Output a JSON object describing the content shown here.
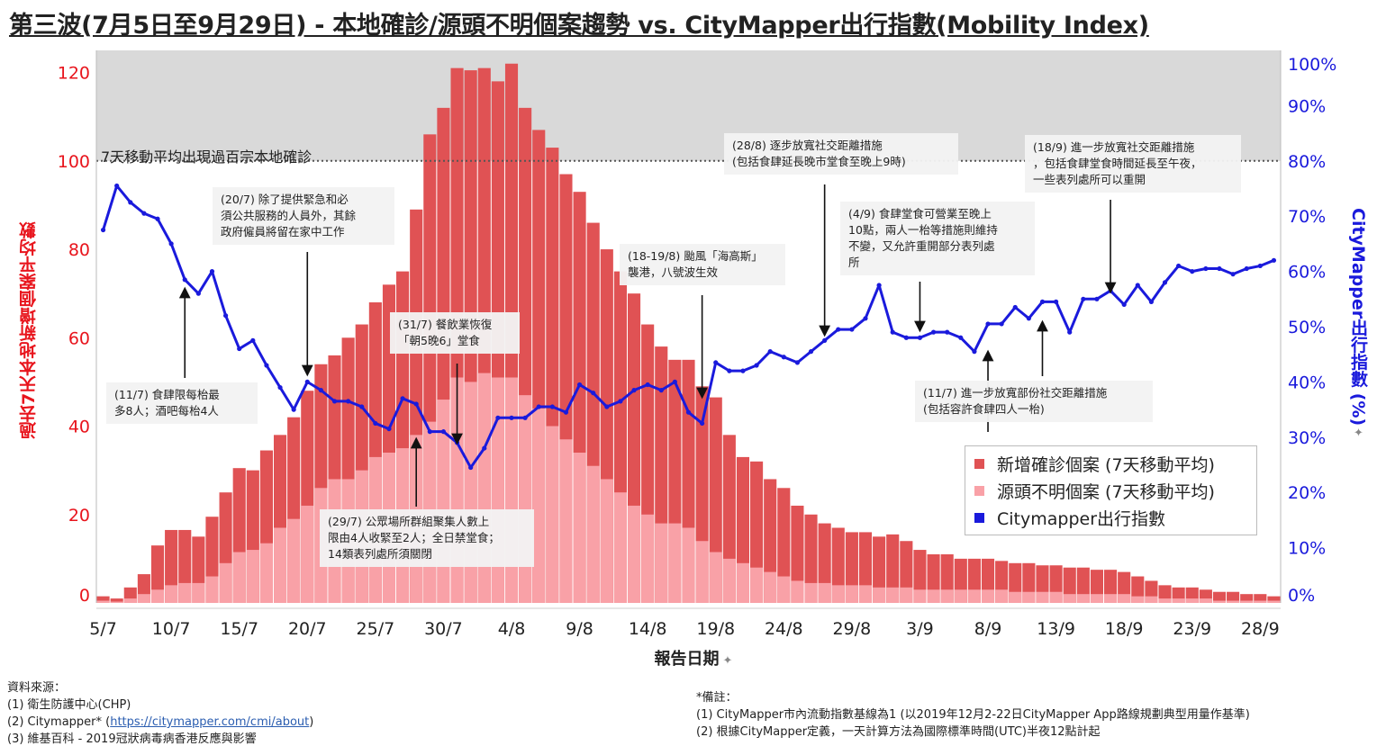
{
  "title": "第三波(7月5日至9月29日) - 本地確診/源頭不明個案趨勢 vs. CityMapper出行指數(Mobility Index)",
  "axes": {
    "left_label": "過去7天本地新增個案平均數",
    "right_label": "CityMapper出行指數 (%)",
    "x_label": "報告日期",
    "pin_glyph": "✦"
  },
  "annotations": {
    "hundred_line": "7天移動平均出現過百宗本地確診",
    "a_11_7": [
      "(11/7) 食肆限每枱最",
      "多8人；酒吧每枱4人"
    ],
    "a_20_7": [
      "(20/7) 除了提供緊急和必",
      "須公共服務的人員外，其餘",
      "政府僱員將留在家中工作"
    ],
    "a_31_7": [
      "(31/7) 餐飲業恢復",
      "「朝5晚6」堂食"
    ],
    "a_29_7": [
      "(29/7) 公眾場所群組聚集人數上",
      "限由4人收緊至2人；全日禁堂食；",
      "14類表列處所須關閉"
    ],
    "a_18_8": [
      "(18-19/8) 颱風「海高斯」",
      "襲港，八號波生效"
    ],
    "a_28_8": [
      "(28/8) 逐步放寬社交距離措施",
      "(包括食肆延長晚市堂食至晚上9時)"
    ],
    "a_4_9": [
      "(4/9) 食肆堂食可營業至晚上",
      "10點，兩人一枱等措施則維持",
      "不變，又允許重開部分表列處",
      "所"
    ],
    "a_18_9": [
      "(18/9) 進一步放寬社交距離措施",
      "，包括食肆堂食時間延長至午夜，",
      "一些表列處所可以重開"
    ],
    "a_11_9": [
      "(11/7) 進一步放寬部份社交距離措施",
      "(包括容許食肆四人一枱)"
    ]
  },
  "legend": {
    "items": [
      {
        "label": "新增確診個案 (7天移動平均)",
        "color": "#e05254"
      },
      {
        "label": "源頭不明個案 (7天移動平均)",
        "color": "#f9a1a7"
      },
      {
        "label": "Citymapper出行指數",
        "color": "#1a1adc"
      }
    ]
  },
  "sources": {
    "heading": "資料來源：",
    "line1": "(1) 衛生防護中心(CHP)",
    "line2_prefix": "(2) Citymapper* (",
    "line2_link": "https://citymapper.com/cmi/about",
    "line2_suffix": ")",
    "line3": "(3) 維基百科 - 2019冠狀病毒病香港反應與影響"
  },
  "notes": {
    "heading": "*備註：",
    "line1": "(1) CityMapper市內流動指數基線為1 (以2019年12月2-22日CityMapper App路線規劃典型用量作基準)",
    "line2": "(2) 根據CityMapper定義，一天計算方法為國際標準時間(UTC)半夜12點計起"
  },
  "colors": {
    "confirmed": "#e05254",
    "unknown": "#f9a1a7",
    "mobility": "#1a1adc",
    "left_axis": "#e8141c",
    "shade": "#d9d9d9"
  },
  "chart_data": {
    "type": "bar+line",
    "x": [
      "5/7",
      "6/7",
      "7/7",
      "8/7",
      "9/7",
      "10/7",
      "11/7",
      "12/7",
      "13/7",
      "14/7",
      "15/7",
      "16/7",
      "17/7",
      "18/7",
      "19/7",
      "20/7",
      "21/7",
      "22/7",
      "23/7",
      "24/7",
      "25/7",
      "26/7",
      "27/7",
      "28/7",
      "29/7",
      "30/7",
      "31/7",
      "1/8",
      "2/8",
      "3/8",
      "4/8",
      "5/8",
      "6/8",
      "7/8",
      "8/8",
      "9/8",
      "10/8",
      "11/8",
      "12/8",
      "13/8",
      "14/8",
      "15/8",
      "16/8",
      "17/8",
      "18/8",
      "19/8",
      "20/8",
      "21/8",
      "22/8",
      "23/8",
      "24/8",
      "25/8",
      "26/8",
      "27/8",
      "28/8",
      "29/8",
      "30/8",
      "31/8",
      "1/9",
      "2/9",
      "3/9",
      "4/9",
      "5/9",
      "6/9",
      "7/9",
      "8/9",
      "9/9",
      "10/9",
      "11/9",
      "12/9",
      "13/9",
      "14/9",
      "15/9",
      "16/9",
      "17/9",
      "18/9",
      "19/9",
      "20/9",
      "21/9",
      "22/9",
      "23/9",
      "24/9",
      "25/9",
      "26/9",
      "27/9",
      "28/9",
      "29/9"
    ],
    "x_ticks": [
      "5/7",
      "10/7",
      "15/7",
      "20/7",
      "25/7",
      "30/7",
      "4/8",
      "9/8",
      "14/8",
      "19/8",
      "24/8",
      "29/8",
      "3/9",
      "8/9",
      "13/9",
      "18/9",
      "23/9",
      "28/9"
    ],
    "series": [
      {
        "name": "新增確診個案 (7天移動平均)",
        "axis": "left",
        "values": [
          1.5,
          1,
          3.5,
          6.5,
          13,
          16.5,
          16.5,
          15,
          19.5,
          25,
          30.5,
          30,
          34.5,
          38,
          42,
          48,
          54,
          56,
          60,
          63,
          68,
          72,
          75,
          89,
          106,
          112,
          121,
          120.5,
          121,
          118,
          122,
          112,
          107,
          103,
          97,
          93,
          86,
          80,
          75,
          70,
          63,
          58,
          55,
          55,
          49,
          46.5,
          38,
          33,
          32,
          28,
          26,
          22,
          20,
          18,
          17,
          16,
          16,
          15,
          15.5,
          14,
          12,
          11,
          11,
          10,
          10,
          10,
          9.5,
          9,
          9,
          8.5,
          8.5,
          8,
          8,
          7.5,
          7.5,
          7,
          6,
          5,
          4,
          3.5,
          3.5,
          3,
          2.5,
          2.5,
          2,
          2,
          1.5
        ]
      },
      {
        "name": "源頭不明個案 (7天移動平均)",
        "axis": "left",
        "values": [
          0.5,
          0.3,
          1,
          2,
          3,
          4,
          4.5,
          4.5,
          6,
          9,
          11.5,
          12,
          13.5,
          17,
          19,
          22,
          26,
          28,
          28,
          30,
          33,
          34,
          35,
          38,
          41,
          46,
          51,
          50,
          52,
          51,
          51,
          47,
          44,
          40,
          37,
          34,
          31,
          28,
          25,
          22,
          20,
          18,
          18,
          17,
          14,
          11.5,
          10,
          9,
          8,
          7,
          6,
          5,
          4.5,
          4.5,
          4,
          4,
          4,
          3.5,
          3.5,
          3.5,
          3,
          3,
          3,
          3,
          3,
          3,
          3,
          2.5,
          2.5,
          2.5,
          2.5,
          2,
          2,
          2,
          2,
          2,
          1.5,
          1.5,
          1,
          1,
          1,
          1,
          0.5,
          0.5,
          0.5,
          0.5,
          0.5
        ]
      },
      {
        "name": "Citymapper出行指數",
        "axis": "right",
        "unit": "%",
        "values": [
          67.5,
          75.5,
          72.5,
          70.5,
          69.5,
          65,
          58.5,
          56,
          60,
          52,
          46,
          47.5,
          43,
          39,
          35,
          40,
          38.5,
          36.5,
          36.5,
          35.5,
          32.5,
          31.5,
          37,
          36,
          31,
          31,
          29,
          24.5,
          28,
          33.5,
          33.5,
          33.5,
          35.5,
          35.5,
          34.5,
          39.5,
          38,
          35.5,
          36.5,
          38.5,
          39.5,
          38.5,
          40,
          34.5,
          32.5,
          43.5,
          42,
          42,
          43,
          45.5,
          44.5,
          43.5,
          45.5,
          47.5,
          49.5,
          49.5,
          51.5,
          57.5,
          49,
          48,
          48,
          49,
          49,
          48,
          45.5,
          50.5,
          50.5,
          53.5,
          51.5,
          54.5,
          54.5,
          49,
          55,
          55,
          56.5,
          54,
          57.5,
          54.5,
          58,
          61,
          60,
          60.5,
          60.5,
          59.5,
          60.5,
          61,
          62
        ]
      }
    ],
    "left_axis": {
      "range": [
        0,
        125
      ],
      "ticks": [
        0,
        20,
        40,
        60,
        80,
        100,
        120
      ],
      "tick_labels": [
        "0",
        "20",
        "40",
        "60",
        "80",
        "100",
        "120"
      ]
    },
    "right_axis": {
      "range": [
        0,
        100
      ],
      "ticks": [
        0,
        10,
        20,
        30,
        40,
        50,
        60,
        70,
        80,
        90,
        100
      ],
      "tick_labels": [
        "0%",
        "10%",
        "20%",
        "30%",
        "40%",
        "50%",
        "60%",
        "70%",
        "80%",
        "90%",
        "100%"
      ]
    },
    "reference_line": {
      "value": 100,
      "axis": "left",
      "style": "dotted",
      "shade_above": true
    }
  }
}
